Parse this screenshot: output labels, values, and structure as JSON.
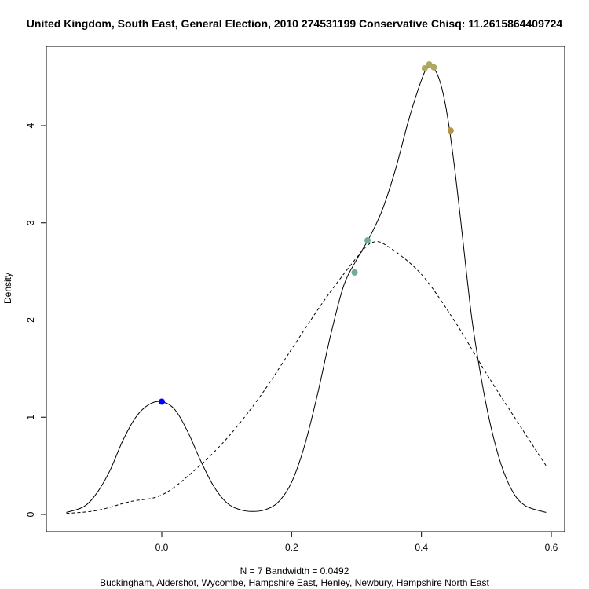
{
  "chart_data": {
    "type": "line",
    "title": "United Kingdom, South East, General Election, 2010 274531199 Conservative Chisq: 11.2615864409724",
    "ylabel": "Density",
    "xlabel_line1": "N = 7   Bandwidth = 0.0492",
    "xlabel_line2": "Buckingham, Aldershot, Wycombe, Hampshire East, Henley, Newbury, Hampshire North East",
    "xlim": [
      -0.147,
      0.592
    ],
    "ylim": [
      0,
      4.62
    ],
    "x_ticks": [
      0.0,
      0.2,
      0.4,
      0.6
    ],
    "x_tick_labels": [
      "0.0",
      "0.2",
      "0.4",
      "0.6"
    ],
    "y_ticks": [
      0,
      1,
      2,
      3,
      4
    ],
    "y_tick_labels": [
      "0",
      "1",
      "2",
      "3",
      "4"
    ],
    "kde_curve": {
      "style": "solid",
      "points": [
        [
          -0.147,
          0.02
        ],
        [
          -0.12,
          0.08
        ],
        [
          -0.1,
          0.22
        ],
        [
          -0.08,
          0.45
        ],
        [
          -0.06,
          0.76
        ],
        [
          -0.04,
          1.0
        ],
        [
          -0.02,
          1.13
        ],
        [
          0.0,
          1.16
        ],
        [
          0.02,
          1.08
        ],
        [
          0.04,
          0.85
        ],
        [
          0.06,
          0.55
        ],
        [
          0.08,
          0.29
        ],
        [
          0.1,
          0.12
        ],
        [
          0.12,
          0.05
        ],
        [
          0.14,
          0.03
        ],
        [
          0.16,
          0.05
        ],
        [
          0.18,
          0.13
        ],
        [
          0.2,
          0.33
        ],
        [
          0.22,
          0.71
        ],
        [
          0.24,
          1.24
        ],
        [
          0.26,
          1.84
        ],
        [
          0.28,
          2.35
        ],
        [
          0.3,
          2.62
        ],
        [
          0.32,
          2.85
        ],
        [
          0.34,
          3.14
        ],
        [
          0.36,
          3.55
        ],
        [
          0.38,
          4.05
        ],
        [
          0.4,
          4.47
        ],
        [
          0.41,
          4.6
        ],
        [
          0.42,
          4.58
        ],
        [
          0.43,
          4.42
        ],
        [
          0.44,
          4.1
        ],
        [
          0.45,
          3.62
        ],
        [
          0.46,
          3.05
        ],
        [
          0.47,
          2.45
        ],
        [
          0.48,
          1.9
        ],
        [
          0.5,
          1.12
        ],
        [
          0.52,
          0.57
        ],
        [
          0.54,
          0.24
        ],
        [
          0.56,
          0.09
        ],
        [
          0.592,
          0.02
        ]
      ]
    },
    "normal_curve": {
      "style": "dashed",
      "points": [
        [
          -0.147,
          0.01
        ],
        [
          -0.1,
          0.04
        ],
        [
          -0.05,
          0.13
        ],
        [
          0.0,
          0.2
        ],
        [
          0.05,
          0.45
        ],
        [
          0.1,
          0.78
        ],
        [
          0.15,
          1.2
        ],
        [
          0.2,
          1.7
        ],
        [
          0.25,
          2.2
        ],
        [
          0.3,
          2.64
        ],
        [
          0.325,
          2.8
        ],
        [
          0.35,
          2.75
        ],
        [
          0.4,
          2.47
        ],
        [
          0.45,
          2.0
        ],
        [
          0.5,
          1.45
        ],
        [
          0.55,
          0.93
        ],
        [
          0.592,
          0.5
        ]
      ]
    },
    "points": [
      {
        "x": 0.0,
        "y": 1.16,
        "color": "#0000ff"
      },
      {
        "x": 0.297,
        "y": 2.49,
        "color": "#6fae8e"
      },
      {
        "x": 0.317,
        "y": 2.82,
        "color": "#6fae8e"
      },
      {
        "x": 0.405,
        "y": 4.59,
        "color": "#b0a860"
      },
      {
        "x": 0.412,
        "y": 4.63,
        "color": "#b0a860"
      },
      {
        "x": 0.419,
        "y": 4.6,
        "color": "#b0a860"
      },
      {
        "x": 0.445,
        "y": 3.95,
        "color": "#b7914a"
      }
    ]
  }
}
